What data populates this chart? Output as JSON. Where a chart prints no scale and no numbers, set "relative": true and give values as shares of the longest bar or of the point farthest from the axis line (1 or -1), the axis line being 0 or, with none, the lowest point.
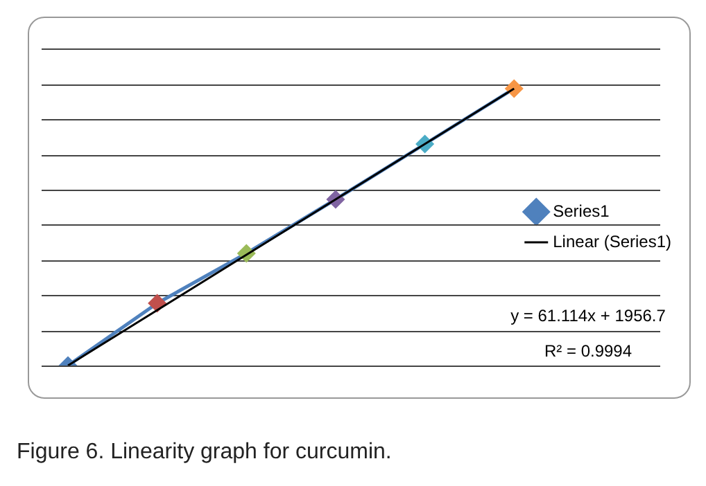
{
  "chart_data": {
    "type": "line",
    "title": "Figure 6. Linearity graph for curcumin.",
    "categories": [
      null,
      null,
      null,
      null,
      null,
      null
    ],
    "relative": true,
    "grid": "y",
    "legend": "right",
    "marker": "diamond",
    "series": [
      {
        "name": "Series1",
        "colors": [
          "#4f81bd",
          "#c0504d",
          "#9bbb59",
          "#8064a2",
          "#4bacc6",
          "#f79646"
        ],
        "values": [
          0,
          0.225,
          0.405,
          0.6,
          0.8,
          1.0
        ]
      },
      {
        "name": "Linear (Series1)",
        "color": "#000000",
        "marker": "none",
        "values": [
          0,
          0.2,
          0.4,
          0.6,
          0.8,
          1.0
        ]
      }
    ],
    "annotations": [
      "y = 61.114x + 1956.7",
      "R² = 0.9994"
    ]
  }
}
